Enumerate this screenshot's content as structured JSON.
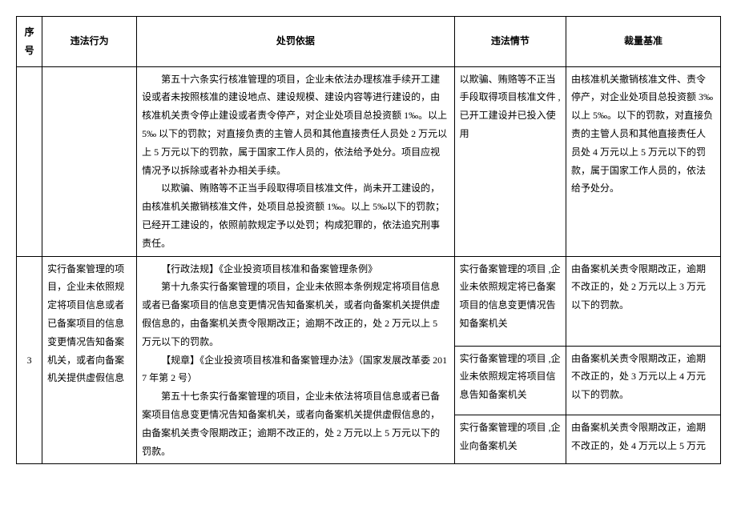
{
  "headers": {
    "seq": "序号",
    "act": "违法行为",
    "basis": "处罚依据",
    "circ": "违法情节",
    "std": "裁量基准"
  },
  "row1": {
    "basis_p1": "第五十六条实行核准管理的项目，企业未依法办理核准手续开工建设或者未按照核准的建设地点、建设规模、建设内容等进行建设的，由核准机关责令停止建设或者责令停产，对企业处项目总投资额 1‰。以上 5‰ 以下的罚款；对直接负责的主管人员和其他直接责任人员处 2 万元以上 5 万元以下的罚款，属于国家工作人员的，依法给予处分。项目应视情况予以拆除或者补办相关手续。",
    "basis_p2": "以欺骗、贿赂等不正当手段取得项目核准文件，尚未开工建设的，由核准机关撤销核准文件，处项目总投资额 1‰。以上 5‰以下的罚款；已经开工建设的，依照前款规定予以处罚；构成犯罪的，依法追究刑事责任。",
    "circ": "以欺骗、贿赂等不正当手段取得项目核准文件 ,已开工建设并已投入使用",
    "std": "由核准机关撤销核准文件、责令停产，对企业处项目总投资额 3‰以上 5‰。以下的罚款，对直接负责的主管人员和其他直接责任人员处 4 万元以上 5 万元以下的罚款，属于国家工作人员的，依法给予处分。"
  },
  "row2": {
    "seq": "3",
    "act": "实行备案管理的项目，企业未依照规定将项目信息或者已备案项目的信息变更情况告知备案机关，或者向备案机关提供虚假信息",
    "basis_p1": "【行政法规】《企业投资项目核准和备案管理条例》",
    "basis_p2": "第十九条实行备案管理的项目，企业未依照本条例规定将项目信息或者已备案项目的信息变更情况告知备案机关，或者向备案机关提供虚假信息的，由备案机关责令限期改正；逾期不改正的，处 2 万元以上 5 万元以下的罚款。",
    "basis_p3": "【规章】《企业投资项目核准和备案管理办法》（国家发展改革委 2017 年第 2 号）",
    "basis_p4": "第五十七条实行备案管理的项目，企业未依法将项目信息或者已备案项目信息变更情况告知备案机关，或者向备案机关提供虚假信息的，由备案机关责令限期改正；逾期不改正的，处 2 万元以上 5 万元以下的罚款。",
    "r1_circ": "实行备案管理的项目 ,企业未依照规定将已备案项目的信息变更情况告知备案机关",
    "r1_std": "由备案机关责令限期改正，逾期不改正的，处 2 万元以上 3 万元以下的罚款。",
    "r2_circ": "实行备案管理的项目 ,企业未依照规定将项目信息告知备案机关",
    "r2_std": "由备案机关责令限期改正，逾期不改正的，处 3 万元以上 4 万元以下的罚款。",
    "r3_circ": "实行备案管理的项目 ,企业向备案机关",
    "r3_std": "由备案机关责令限期改正，逾期不改正的，处 4 万元以上 5 万元"
  }
}
